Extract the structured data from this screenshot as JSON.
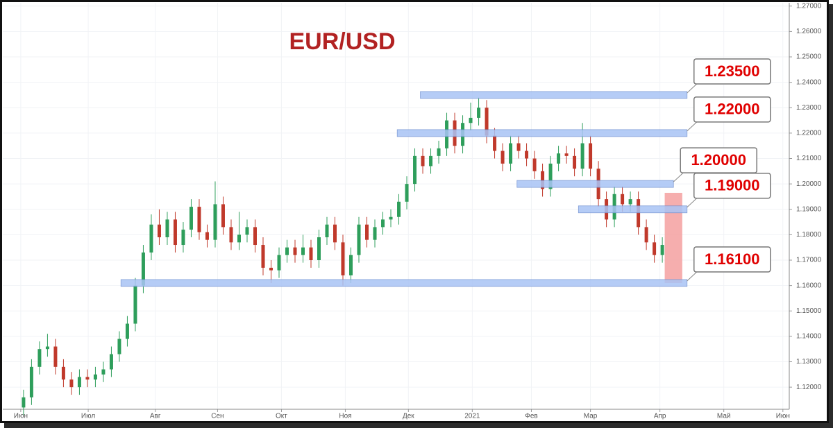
{
  "chart_data": {
    "type": "candlestick",
    "title": "EUR/USD",
    "xlim": [
      -2.6,
      95.9
    ],
    "xticks": [
      {
        "value": -0.35,
        "label": "Июн"
      },
      {
        "value": 8.1,
        "label": "Июл"
      },
      {
        "value": 16.5,
        "label": "Авг"
      },
      {
        "value": 24.3,
        "label": "Сен"
      },
      {
        "value": 32.3,
        "label": "Окт"
      },
      {
        "value": 40.3,
        "label": "Ноя"
      },
      {
        "value": 48.2,
        "label": "Дек"
      },
      {
        "value": 56.2,
        "label": "2021"
      },
      {
        "value": 63.6,
        "label": "Фев"
      },
      {
        "value": 71.0,
        "label": "Мар"
      },
      {
        "value": 79.7,
        "label": "Апр"
      },
      {
        "value": 87.7,
        "label": "Май"
      },
      {
        "value": 95.1,
        "label": "Июн"
      }
    ],
    "ylim": [
      1.1113,
      1.2713
    ],
    "yticks": [
      {
        "value": 1.12,
        "label": "1.12000"
      },
      {
        "value": 1.13,
        "label": "1.13000"
      },
      {
        "value": 1.14,
        "label": "1.14000"
      },
      {
        "value": 1.15,
        "label": "1.15000"
      },
      {
        "value": 1.16,
        "label": "1.16000"
      },
      {
        "value": 1.17,
        "label": "1.17000"
      },
      {
        "value": 1.18,
        "label": "1.18000"
      },
      {
        "value": 1.19,
        "label": "1.19000"
      },
      {
        "value": 1.2,
        "label": "1.20000"
      },
      {
        "value": 1.21,
        "label": "1.21000"
      },
      {
        "value": 1.22,
        "label": "1.22000"
      },
      {
        "value": 1.23,
        "label": "1.23000"
      },
      {
        "value": 1.24,
        "label": "1.24000"
      },
      {
        "value": 1.25,
        "label": "1.25000"
      },
      {
        "value": 1.26,
        "label": "1.26000"
      },
      {
        "value": 1.27,
        "label": "1.27000"
      }
    ],
    "grid": true,
    "up_color": "#2e9e5b",
    "down_color": "#c0392b",
    "open": [
      1.112,
      1.116,
      1.128,
      1.135,
      1.136,
      1.128,
      1.123,
      1.12,
      1.124,
      1.123,
      1.125,
      1.127,
      1.133,
      1.139,
      1.145,
      1.16,
      1.173,
      1.184,
      1.179,
      1.186,
      1.176,
      1.182,
      1.191,
      1.181,
      1.178,
      1.192,
      1.183,
      1.177,
      1.18,
      1.183,
      1.176,
      1.167,
      1.166,
      1.172,
      1.175,
      1.172,
      1.175,
      1.17,
      1.179,
      1.184,
      1.177,
      1.164,
      1.172,
      1.184,
      1.178,
      1.183,
      1.186,
      1.187,
      1.193,
      1.2,
      1.211,
      1.207,
      1.211,
      1.214,
      1.225,
      1.215,
      1.224,
      1.226,
      1.23,
      1.219,
      1.213,
      1.208,
      1.216,
      1.213,
      1.21,
      1.205,
      1.198,
      1.208,
      1.212,
      1.211,
      1.206,
      1.216,
      1.206,
      1.194,
      1.186,
      1.196,
      1.192,
      1.194,
      1.183,
      1.177,
      1.172
    ],
    "high": [
      1.119,
      1.131,
      1.138,
      1.141,
      1.139,
      1.131,
      1.126,
      1.127,
      1.127,
      1.128,
      1.13,
      1.136,
      1.142,
      1.148,
      1.163,
      1.176,
      1.188,
      1.19,
      1.189,
      1.189,
      1.185,
      1.194,
      1.194,
      1.184,
      1.201,
      1.195,
      1.186,
      1.189,
      1.186,
      1.186,
      1.179,
      1.17,
      1.175,
      1.178,
      1.178,
      1.18,
      1.178,
      1.182,
      1.187,
      1.187,
      1.18,
      1.175,
      1.187,
      1.187,
      1.186,
      1.189,
      1.19,
      1.196,
      1.203,
      1.214,
      1.214,
      1.214,
      1.217,
      1.228,
      1.228,
      1.227,
      1.232,
      1.234,
      1.233,
      1.222,
      1.216,
      1.219,
      1.219,
      1.216,
      1.213,
      1.208,
      1.211,
      1.215,
      1.215,
      1.214,
      1.224,
      1.219,
      1.209,
      1.197,
      1.199,
      1.199,
      1.197,
      1.197,
      1.186,
      1.18,
      1.179
    ],
    "low": [
      1.109,
      1.113,
      1.125,
      1.132,
      1.125,
      1.12,
      1.117,
      1.117,
      1.12,
      1.12,
      1.122,
      1.124,
      1.13,
      1.136,
      1.142,
      1.157,
      1.17,
      1.176,
      1.176,
      1.173,
      1.173,
      1.179,
      1.178,
      1.175,
      1.175,
      1.18,
      1.174,
      1.174,
      1.177,
      1.173,
      1.164,
      1.161,
      1.163,
      1.169,
      1.169,
      1.169,
      1.167,
      1.167,
      1.176,
      1.174,
      1.16,
      1.161,
      1.169,
      1.175,
      1.175,
      1.18,
      1.183,
      1.184,
      1.19,
      1.197,
      1.204,
      1.204,
      1.208,
      1.211,
      1.212,
      1.212,
      1.221,
      1.223,
      1.216,
      1.21,
      1.205,
      1.205,
      1.21,
      1.207,
      1.202,
      1.195,
      1.195,
      1.205,
      1.208,
      1.203,
      1.203,
      1.203,
      1.191,
      1.183,
      1.183,
      1.189,
      1.189,
      1.18,
      1.174,
      1.169,
      1.169
    ],
    "close": [
      1.116,
      1.128,
      1.135,
      1.136,
      1.128,
      1.123,
      1.12,
      1.124,
      1.123,
      1.125,
      1.127,
      1.133,
      1.139,
      1.145,
      1.16,
      1.173,
      1.184,
      1.179,
      1.186,
      1.176,
      1.182,
      1.191,
      1.181,
      1.178,
      1.192,
      1.183,
      1.177,
      1.18,
      1.183,
      1.176,
      1.167,
      1.166,
      1.172,
      1.175,
      1.172,
      1.175,
      1.17,
      1.179,
      1.184,
      1.177,
      1.164,
      1.172,
      1.184,
      1.178,
      1.183,
      1.186,
      1.187,
      1.193,
      1.2,
      1.211,
      1.207,
      1.211,
      1.214,
      1.225,
      1.215,
      1.224,
      1.226,
      1.23,
      1.219,
      1.213,
      1.208,
      1.216,
      1.213,
      1.21,
      1.205,
      1.198,
      1.208,
      1.212,
      1.211,
      1.206,
      1.216,
      1.206,
      1.194,
      1.186,
      1.196,
      1.192,
      1.194,
      1.183,
      1.177,
      1.172,
      1.176
    ],
    "zone_color": "#a9c4f5",
    "levels": [
      {
        "value": 1.235,
        "label": "1.23500",
        "from": 49.7,
        "to": 83.1
      },
      {
        "value": 1.22,
        "label": "1.22000",
        "from": 46.8,
        "to": 83.1
      },
      {
        "value": 1.2,
        "label": "1.20000",
        "from": 61.8,
        "to": 81.4
      },
      {
        "value": 1.19,
        "label": "1.19000",
        "from": 69.5,
        "to": 83.1
      },
      {
        "value": 1.161,
        "label": "1.16100",
        "from": 12.2,
        "to": 83.1
      }
    ],
    "highlight": {
      "from": 80.3,
      "to": 82.5,
      "low": 1.161,
      "high": 1.1965,
      "color": "#f4a0a0"
    }
  }
}
